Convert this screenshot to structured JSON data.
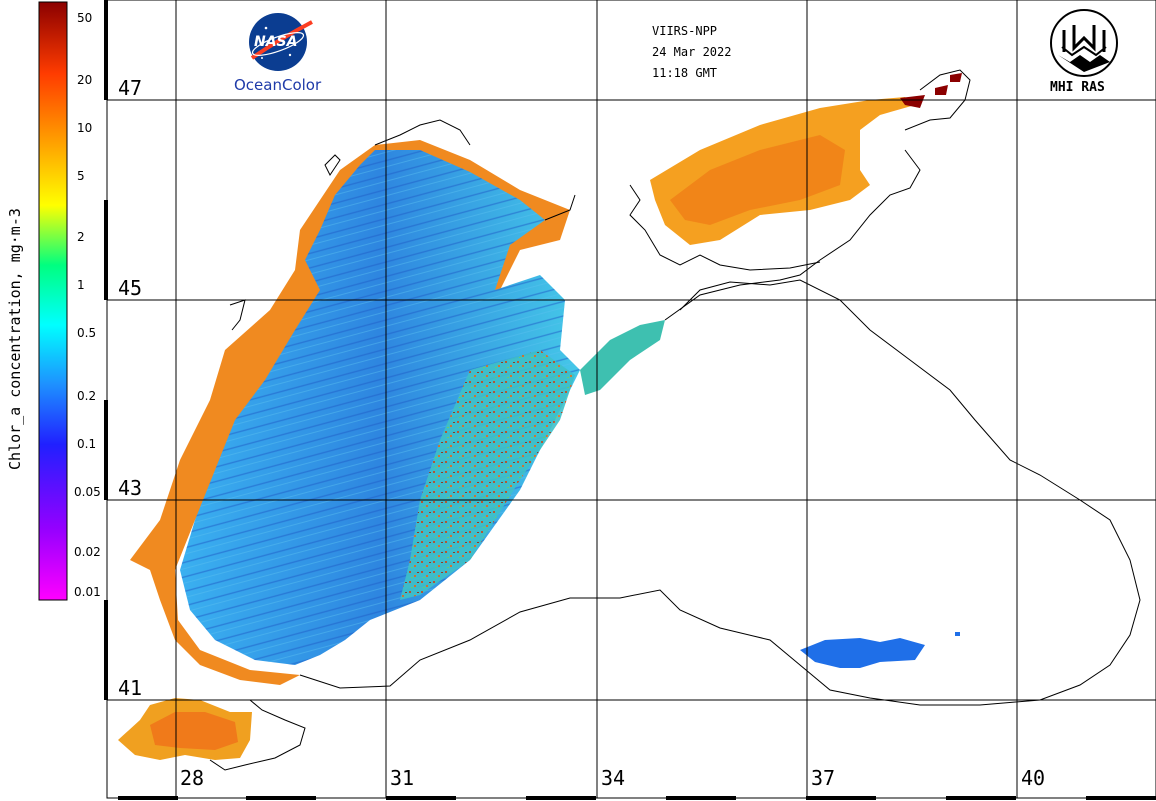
{
  "header": {
    "satellite": "VIIRS-NPP",
    "date": "24 Mar 2022",
    "time": "11:18 GMT"
  },
  "logos": {
    "nasa_text": "NASA",
    "nasa_caption": "OceanColor",
    "mhi_caption": "MHI RAS"
  },
  "colorbar": {
    "title": "Chlor_a concentration, mg·m-3",
    "scale": "log",
    "range": [
      0.01,
      60
    ],
    "ticks": [
      "50",
      "20",
      "10",
      "5",
      "2",
      "1",
      "0.5",
      "0.2",
      "0.1",
      "0.05",
      "0.02",
      "0.01"
    ],
    "tick_values": [
      50,
      20,
      10,
      5,
      2,
      1,
      0.5,
      0.2,
      0.1,
      0.05,
      0.02,
      0.01
    ],
    "colors": [
      "#ff00ff",
      "#9400ff",
      "#2020ff",
      "#1e90ff",
      "#00ffff",
      "#00ff80",
      "#ffff00",
      "#ffa500",
      "#ff3c00",
      "#8b0000"
    ]
  },
  "grid": {
    "latitudes": [
      "47",
      "45",
      "43",
      "41"
    ],
    "longitudes": [
      "28",
      "31",
      "34",
      "37",
      "40"
    ]
  }
}
